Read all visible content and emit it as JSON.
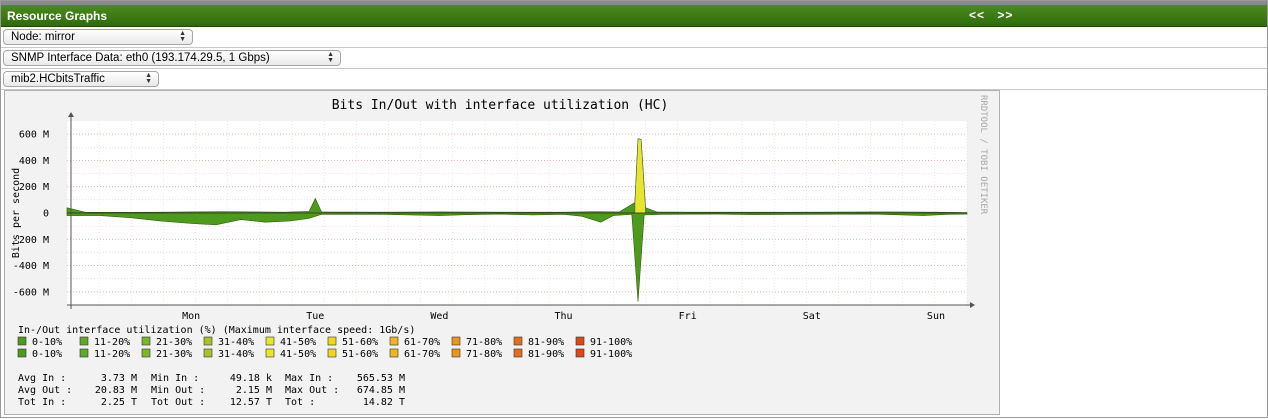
{
  "header": {
    "title": "Resource Graphs",
    "prev_label": "<<",
    "next_label": ">>"
  },
  "selectors": {
    "node": "Node: mirror",
    "interface": "SNMP Interface Data: eth0 (193.174.29.5, 1 Gbps)",
    "metric": "mib2.HCbitsTraffic"
  },
  "graph": {
    "title": "Bits In/Out with interface utilization (HC)",
    "ylabel": "Bits per second",
    "watermark": "RRDTOOL / TOBI OETIKER",
    "yticks": [
      "600 M",
      "400 M",
      "200 M",
      "0",
      "-200 M",
      "-400 M",
      "-600 M"
    ],
    "xticks": [
      "Mon",
      "Tue",
      "Wed",
      "Thu",
      "Fri",
      "Sat",
      "Sun"
    ],
    "legend_header": "In-/Out interface utilization (%) (Maximum interface speed:  1Gb/s)",
    "legend_labels": [
      "0-10%",
      "11-20%",
      "21-30%",
      "31-40%",
      "41-50%",
      "51-60%",
      "61-70%",
      "71-80%",
      "81-90%",
      "91-100%"
    ],
    "legend_colors": [
      "#4e9a1e",
      "#5fa82a",
      "#7cb52a",
      "#a8c22a",
      "#e6e62c",
      "#f2d61e",
      "#f0b428",
      "#e8961e",
      "#e0701c",
      "#d84a16"
    ],
    "stats": [
      [
        "Avg In  :",
        "3.73 M",
        "Min In  :",
        "49.18 k",
        "Max In  :",
        "565.53 M"
      ],
      [
        "Avg Out :",
        "20.83 M",
        "Min Out :",
        "2.15 M",
        "Max Out :",
        "674.85 M"
      ],
      [
        "Tot In  :",
        "2.25 T",
        "Tot Out :",
        "12.57 T",
        "Tot     :",
        "14.82 T"
      ]
    ]
  },
  "chart_data": {
    "type": "area",
    "title": "Bits In/Out with interface utilization (HC)",
    "ylabel": "Bits per second",
    "xlabel": "",
    "ylim": [
      -700,
      700
    ],
    "yunit": "M",
    "x_categories": [
      "Mon",
      "Tue",
      "Wed",
      "Thu",
      "Fri",
      "Sat",
      "Sun"
    ],
    "grid": true,
    "series": [
      {
        "name": "In",
        "points": [
          [
            0,
            40
          ],
          [
            0.3,
            5
          ],
          [
            1,
            5
          ],
          [
            1.5,
            6
          ],
          [
            2,
            8
          ],
          [
            2.5,
            10
          ],
          [
            3,
            8
          ],
          [
            3.5,
            6
          ],
          [
            3.9,
            12
          ],
          [
            4.0,
            110
          ],
          [
            4.1,
            8
          ],
          [
            5,
            6
          ],
          [
            6,
            8
          ],
          [
            7,
            6
          ],
          [
            8,
            6
          ],
          [
            8.5,
            10
          ],
          [
            8.9,
            8
          ],
          [
            9.15,
            80
          ],
          [
            9.2,
            565
          ],
          [
            9.25,
            560
          ],
          [
            9.32,
            40
          ],
          [
            9.5,
            8
          ],
          [
            10,
            6
          ],
          [
            11,
            6
          ],
          [
            12,
            6
          ],
          [
            13,
            8
          ],
          [
            14,
            6
          ],
          [
            14.5,
            4
          ]
        ]
      },
      {
        "name": "Out",
        "points": [
          [
            0,
            -20
          ],
          [
            0.5,
            -18
          ],
          [
            1,
            -35
          ],
          [
            1.5,
            -60
          ],
          [
            2,
            -80
          ],
          [
            2.4,
            -90
          ],
          [
            2.8,
            -50
          ],
          [
            3.2,
            -70
          ],
          [
            3.6,
            -60
          ],
          [
            3.9,
            -40
          ],
          [
            4.1,
            -10
          ],
          [
            5,
            -10
          ],
          [
            6,
            -20
          ],
          [
            6.5,
            -12
          ],
          [
            7,
            -8
          ],
          [
            7.5,
            -15
          ],
          [
            8,
            -10
          ],
          [
            8.3,
            -25
          ],
          [
            8.6,
            -70
          ],
          [
            8.8,
            -20
          ],
          [
            9.1,
            -10
          ],
          [
            9.2,
            -675
          ],
          [
            9.3,
            -15
          ],
          [
            9.6,
            -10
          ],
          [
            10.5,
            -8
          ],
          [
            11,
            -12
          ],
          [
            12,
            -10
          ],
          [
            13,
            -8
          ],
          [
            13.8,
            -20
          ],
          [
            14.2,
            -10
          ],
          [
            14.5,
            -8
          ]
        ]
      }
    ]
  }
}
